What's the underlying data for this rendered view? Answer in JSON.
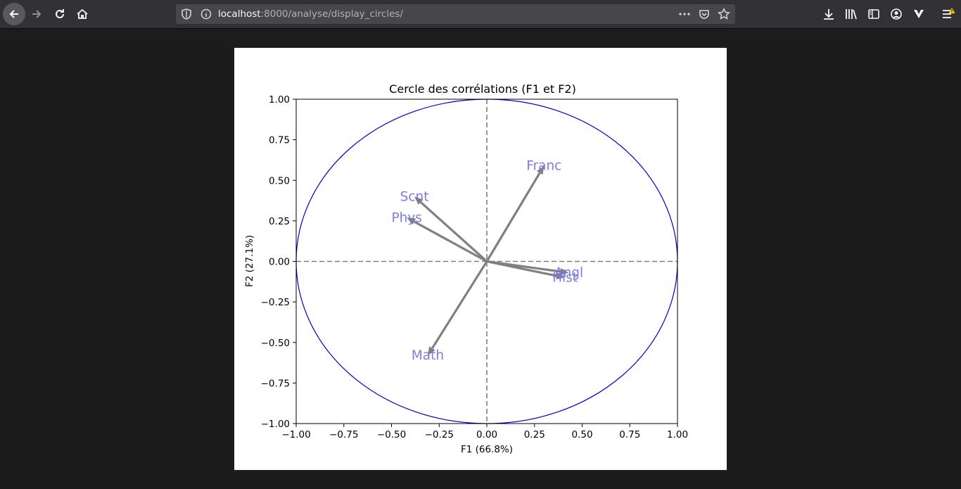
{
  "browser": {
    "url_host": "localhost",
    "url_rest": ":8000/analyse/display_circles/",
    "icons": [
      "back-arrow-icon",
      "forward-arrow-icon",
      "reload-icon",
      "home-icon",
      "shield-icon",
      "info-icon",
      "more-icon",
      "pocket-icon",
      "star-icon",
      "download-icon",
      "library-icon",
      "sidebar-icon",
      "account-icon",
      "extension-icon",
      "menu-icon",
      "warning-badge-icon"
    ]
  },
  "chart_data": {
    "type": "scatter",
    "title": "Cercle des corrélations (F1 et F2)",
    "xlabel": "F1 (66.8%)",
    "ylabel": "F2 (27.1%)",
    "xlim": [
      -1.0,
      1.0
    ],
    "ylim": [
      -1.0,
      1.0
    ],
    "xticks": [
      "−1.00",
      "−0.75",
      "−0.50",
      "−0.25",
      "0.00",
      "0.25",
      "0.50",
      "0.75",
      "1.00"
    ],
    "yticks": [
      "−1.00",
      "−0.75",
      "−0.50",
      "−0.25",
      "0.00",
      "0.25",
      "0.50",
      "0.75",
      "1.00"
    ],
    "grid": false,
    "unit_circle": true,
    "vectors": [
      {
        "name": "Franc",
        "x": 0.3,
        "y": 0.59
      },
      {
        "name": "Scnt",
        "x": -0.38,
        "y": 0.4
      },
      {
        "name": "Phys",
        "x": -0.42,
        "y": 0.27
      },
      {
        "name": "Angl",
        "x": 0.43,
        "y": -0.07
      },
      {
        "name": "Hist",
        "x": 0.41,
        "y": -0.1
      },
      {
        "name": "Math",
        "x": -0.31,
        "y": -0.58
      }
    ],
    "colors": {
      "circle": "#0000cc",
      "arrow": "#808080",
      "label": "#7777dd",
      "axis_dashed": "#808080"
    }
  }
}
